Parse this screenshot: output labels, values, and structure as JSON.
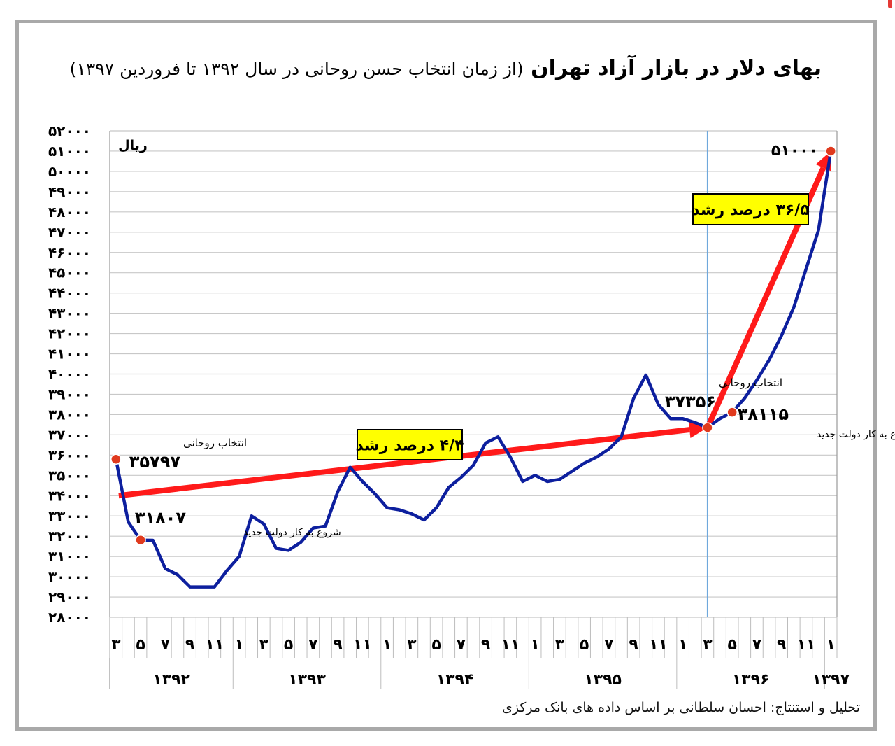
{
  "title": {
    "main": "بهای دلار در بازار آزاد تهران",
    "subtitle": "(از زمان انتخاب حسن روحانی در سال ۱۳۹۲ تا فروردین ۱۳۹۷)"
  },
  "source": "تحلیل و استنتاج: احسان سلطانی بر اساس داده های بانک مرکزی",
  "chart_data": {
    "type": "line",
    "title": "بهای دلار در بازار آزاد تهران (از زمان انتخاب حسن روحانی در سال ۱۳۹۲ تا فروردین ۱۳۹۷)",
    "ylabel": "ریال",
    "ylim": [
      28000,
      52000
    ],
    "yticks": [
      28000,
      29000,
      30000,
      31000,
      32000,
      33000,
      34000,
      35000,
      36000,
      37000,
      38000,
      39000,
      40000,
      41000,
      42000,
      43000,
      44000,
      45000,
      46000,
      47000,
      48000,
      49000,
      50000,
      51000,
      52000
    ],
    "ytick_labels": [
      "۲۸۰۰۰",
      "۲۹۰۰۰",
      "۳۰۰۰۰",
      "۳۱۰۰۰",
      "۳۲۰۰۰",
      "۳۳۰۰۰",
      "۳۴۰۰۰",
      "۳۵۰۰۰",
      "۳۶۰۰۰",
      "۳۷۰۰۰",
      "۳۸۰۰۰",
      "۳۹۰۰۰",
      "۴۰۰۰۰",
      "۴۱۰۰۰",
      "۴۲۰۰۰",
      "۴۳۰۰۰",
      "۴۴۰۰۰",
      "۴۵۰۰۰",
      "۴۶۰۰۰",
      "۴۷۰۰۰",
      "۴۸۰۰۰",
      "۴۹۰۰۰",
      "۵۰۰۰۰",
      "۵۱۰۰۰",
      "۵۲۰۰۰"
    ],
    "grid": true,
    "x_month_labels": [
      {
        "x": 0.5,
        "label": "۳"
      },
      {
        "x": 2.5,
        "label": "۵"
      },
      {
        "x": 4.5,
        "label": "۷"
      },
      {
        "x": 6.5,
        "label": "۹"
      },
      {
        "x": 8.5,
        "label": "۱۱"
      },
      {
        "x": 10.5,
        "label": "۱"
      },
      {
        "x": 12.5,
        "label": "۳"
      },
      {
        "x": 14.5,
        "label": "۵"
      },
      {
        "x": 16.5,
        "label": "۷"
      },
      {
        "x": 18.5,
        "label": "۹"
      },
      {
        "x": 20.5,
        "label": "۱۱"
      },
      {
        "x": 22.5,
        "label": "۱"
      },
      {
        "x": 24.5,
        "label": "۳"
      },
      {
        "x": 26.5,
        "label": "۵"
      },
      {
        "x": 28.5,
        "label": "۷"
      },
      {
        "x": 30.5,
        "label": "۹"
      },
      {
        "x": 32.5,
        "label": "۱۱"
      },
      {
        "x": 34.5,
        "label": "۱"
      },
      {
        "x": 36.5,
        "label": "۳"
      },
      {
        "x": 38.5,
        "label": "۵"
      },
      {
        "x": 40.5,
        "label": "۷"
      },
      {
        "x": 42.5,
        "label": "۹"
      },
      {
        "x": 44.5,
        "label": "۱۱"
      },
      {
        "x": 46.5,
        "label": "۱"
      },
      {
        "x": 48.5,
        "label": "۳"
      },
      {
        "x": 50.5,
        "label": "۵"
      },
      {
        "x": 52.5,
        "label": "۷"
      },
      {
        "x": 54.5,
        "label": "۹"
      },
      {
        "x": 56.5,
        "label": "۱۱"
      },
      {
        "x": 58.5,
        "label": "۱"
      }
    ],
    "years": [
      {
        "label": "۱۳۹۲",
        "from": 0,
        "to": 10
      },
      {
        "label": "۱۳۹۳",
        "from": 10,
        "to": 22
      },
      {
        "label": "۱۳۹۴",
        "from": 22,
        "to": 34
      },
      {
        "label": "۱۳۹۵",
        "from": 34,
        "to": 46
      },
      {
        "label": "۱۳۹۶",
        "from": 46,
        "to": 58
      },
      {
        "label": "۱۳۹۷",
        "from": 58,
        "to": 59
      }
    ],
    "x_range": [
      0,
      59
    ],
    "series": [
      {
        "color": "#0d1f9e",
        "x": [
          0.5,
          1.5,
          2.5,
          3.5,
          4.5,
          5.5,
          6.5,
          7.5,
          8.5,
          9.5,
          10.5,
          11.5,
          12.5,
          13.5,
          14.5,
          15.5,
          16.5,
          17.5,
          18.5,
          19.5,
          20.5,
          21.5,
          22.5,
          23.5,
          24.5,
          25.5,
          26.5,
          27.5,
          28.5,
          29.5,
          30.5,
          31.5,
          32.5,
          33.5,
          34.5,
          35.5,
          36.5,
          37.5,
          38.5,
          39.5,
          40.5,
          41.5,
          42.5,
          43.5,
          44.5,
          45.5,
          46.5,
          47.5,
          48.5,
          49.5,
          50.5,
          51.5,
          52.5,
          53.5,
          54.5,
          55.5,
          56.5,
          57.5,
          58.5
        ],
        "values": [
          35797,
          32700,
          31807,
          31800,
          30400,
          30100,
          29500,
          29500,
          29500,
          30300,
          31000,
          33000,
          32600,
          31400,
          31300,
          31700,
          32400,
          32500,
          34200,
          35400,
          34700,
          34100,
          33400,
          33300,
          33100,
          32800,
          33400,
          34400,
          34900,
          35500,
          36600,
          36900,
          35900,
          34700,
          35000,
          34700,
          34800,
          35200,
          35600,
          35900,
          36300,
          36900,
          38800,
          39950,
          38500,
          37800,
          37800,
          37600,
          37356,
          37800,
          38115,
          38800,
          39700,
          40700,
          41900,
          43300,
          45200,
          47100,
          51000
        ]
      }
    ],
    "highlight_points": [
      {
        "x": 0.5,
        "value": 35797,
        "value_label": "۳۵۷۹۷",
        "caption": "انتخاب روحانی"
      },
      {
        "x": 2.5,
        "value": 31807,
        "value_label": "۳۱۸۰۷",
        "caption": "شروع به کار دولت جدید"
      },
      {
        "x": 48.5,
        "value": 37356,
        "value_label": "۳۷۳۵۶",
        "caption": "انتخاب روحانی"
      },
      {
        "x": 50.5,
        "value": 38115,
        "value_label": "۳۸۱۱۵",
        "caption": "شروع به کار دولت جدید"
      },
      {
        "x": 58.5,
        "value": 51000,
        "value_label": "۵۱۰۰۰",
        "caption": ""
      }
    ],
    "vertical_marker_x": 48.5,
    "trend_arrows": [
      {
        "from": {
          "x": 0.5,
          "value": 34000
        },
        "to": {
          "x": 48.5,
          "value": 37356
        },
        "label": "۴/۴ درصد رشد",
        "color": "#ff1a1a"
      },
      {
        "from": {
          "x": 48.5,
          "value": 37356
        },
        "to": {
          "x": 58.5,
          "value": 51000
        },
        "label": "۳۶/۵ درصد رشد",
        "color": "#ff1a1a"
      }
    ],
    "label_box_color": "#ffff00",
    "dot_color": "#e03a1e",
    "grid_color": "#c8c8c8",
    "marker_line_color": "#6fa8dc"
  }
}
